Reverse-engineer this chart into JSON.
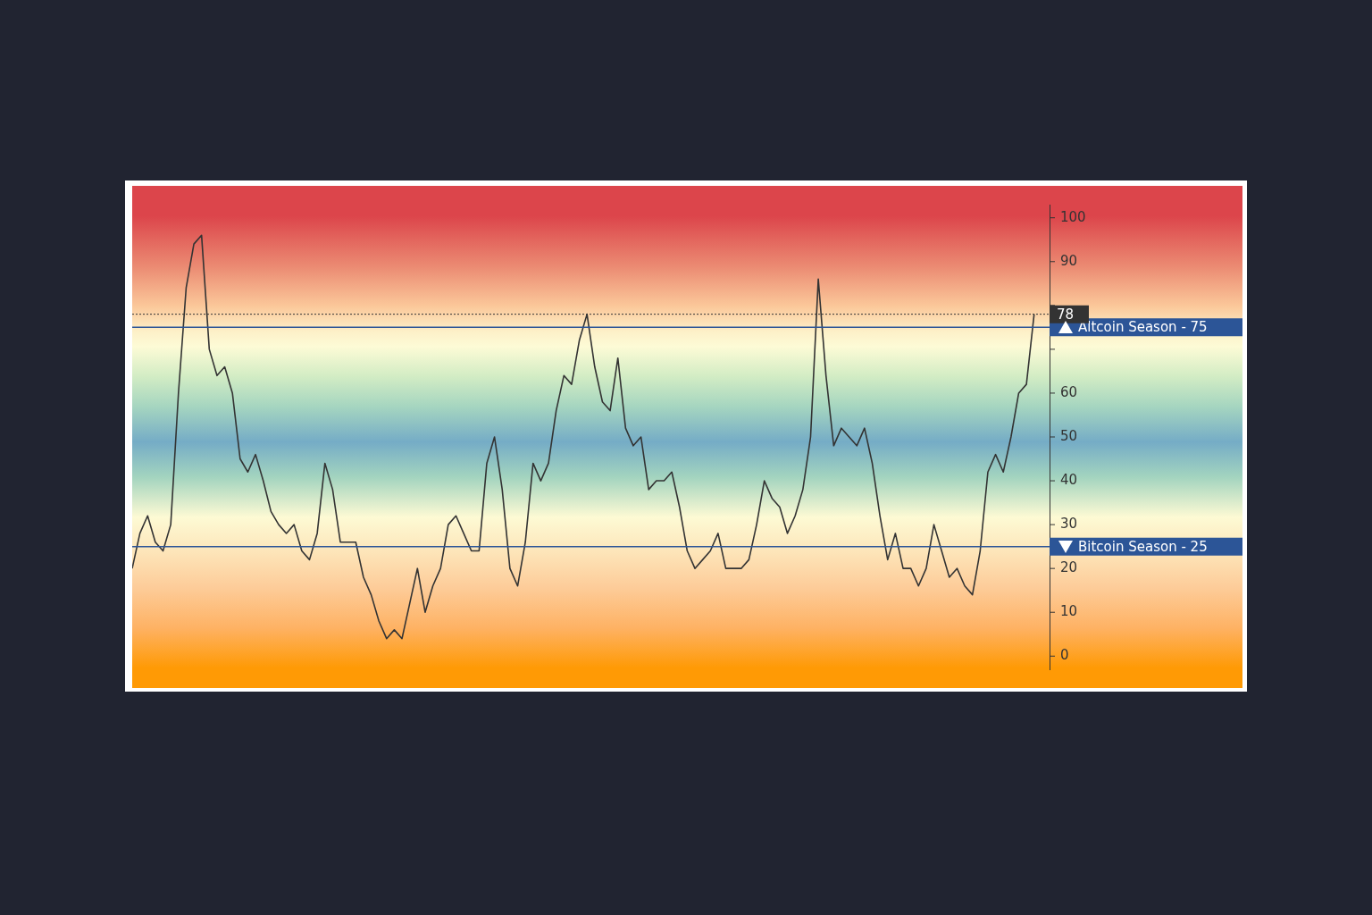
{
  "chart_data": {
    "type": "line",
    "categories": [
      null,
      null,
      null,
      null,
      null,
      null,
      null,
      null,
      null,
      null,
      null,
      null,
      null,
      null,
      null,
      null,
      null,
      null,
      null,
      null,
      null,
      null,
      null,
      null,
      null,
      null,
      null,
      null,
      null,
      null,
      null,
      null,
      null,
      null,
      null,
      null,
      null,
      null,
      null,
      null,
      null,
      null,
      null,
      null,
      null,
      null,
      null,
      null,
      null,
      null,
      null,
      null,
      null,
      null,
      null,
      null,
      null,
      null,
      null,
      null,
      null,
      null,
      null,
      null,
      null,
      null,
      null,
      null,
      null,
      null,
      null,
      null,
      null,
      null,
      null,
      null,
      null,
      null,
      null,
      null,
      null,
      null,
      null,
      null,
      null,
      null,
      null,
      null,
      null,
      null,
      null,
      null,
      null,
      null,
      null,
      null,
      null,
      null,
      null,
      null,
      null,
      null,
      null,
      null,
      null,
      null,
      null,
      null,
      null,
      null,
      null,
      null,
      null,
      null,
      null,
      null,
      null,
      null,
      null,
      null
    ],
    "series": [
      {
        "color": "#333333",
        "values": [
          20,
          28,
          32,
          26,
          24,
          30,
          60,
          84,
          94,
          96,
          70,
          64,
          66,
          60,
          45,
          42,
          46,
          40,
          33,
          30,
          28,
          30,
          24,
          22,
          28,
          44,
          38,
          26,
          26,
          26,
          18,
          14,
          8,
          4,
          6,
          4,
          12,
          20,
          10,
          16,
          20,
          30,
          32,
          28,
          24,
          24,
          44,
          50,
          38,
          20,
          16,
          26,
          44,
          40,
          44,
          56,
          64,
          62,
          72,
          78,
          66,
          58,
          56,
          68,
          52,
          48,
          50,
          38,
          40,
          40,
          42,
          34,
          24,
          20,
          22,
          24,
          28,
          20,
          20,
          20,
          22,
          30,
          40,
          36,
          34,
          28,
          32,
          38,
          50,
          86,
          64,
          48,
          52,
          50,
          48,
          52,
          44,
          32,
          22,
          28,
          20,
          20,
          16,
          20,
          30,
          24,
          18,
          20,
          16,
          14,
          24,
          42,
          46,
          42,
          50,
          60,
          62,
          78,
          null,
          null
        ]
      }
    ],
    "ylim": [
      -3,
      103
    ],
    "yticks": [
      0,
      10,
      20,
      30,
      40,
      50,
      60,
      {
        "value": 70,
        "label": null
      },
      {
        "value": 80,
        "label": null
      },
      90,
      100
    ],
    "ref_lines": [
      {
        "axis": "y",
        "value": 75,
        "label": "Altcoin Season - 75",
        "color": "#2c5597"
      },
      {
        "axis": "y",
        "value": 25,
        "label": "Bitcoin Season - 25",
        "color": "#2c5597"
      },
      {
        "axis": "y",
        "value": 78,
        "label": "78",
        "color": "#333333",
        "line_style": "dotted"
      }
    ],
    "grid": false,
    "legend": false,
    "tick_labels": "y"
  }
}
